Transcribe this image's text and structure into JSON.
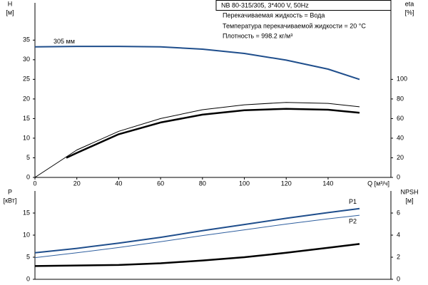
{
  "chart_data": [
    {
      "type": "line",
      "title": "NB 80-315/305, 3*400 V, 50Hz",
      "notes": [
        "Перекачиваемая жидкость = Вода",
        "Температура перекачиваемой жидкости = 20 °C",
        "Плотность = 998.2 кг/м³"
      ],
      "ylabel": "H",
      "yunit": "[м]",
      "y2label": "eta",
      "y2unit": "[%]",
      "xlabel": "Q [м³/ч]",
      "xlim": [
        0,
        170
      ],
      "xticks": [
        0,
        20,
        40,
        60,
        80,
        100,
        120,
        140
      ],
      "ylim": [
        0,
        44.5
      ],
      "yticks": [
        0,
        5,
        10,
        15,
        20,
        25,
        30,
        35
      ],
      "y2lim": [
        0,
        178
      ],
      "y2ticks": [
        0,
        20,
        40,
        60,
        80,
        100
      ],
      "series": [
        {
          "name": "305 мм",
          "color": "#1f4e8c",
          "line_width": 2,
          "x": [
            0,
            20,
            40,
            60,
            80,
            100,
            120,
            140,
            155
          ],
          "values": [
            33.3,
            33.4,
            33.4,
            33.3,
            32.7,
            31.6,
            29.9,
            27.6,
            25.0
          ]
        },
        {
          "color": "#000000",
          "line_width": 1,
          "axis": "y2",
          "x": [
            0,
            20,
            40,
            60,
            80,
            100,
            120,
            140,
            155
          ],
          "values": [
            0,
            28,
            47,
            60,
            69,
            74,
            76.5,
            75.5,
            72
          ]
        },
        {
          "color": "#000000",
          "line_width": 2.5,
          "axis": "y2",
          "x": [
            15,
            20,
            40,
            60,
            80,
            100,
            120,
            140,
            155
          ],
          "values": [
            20,
            25,
            44,
            56,
            64,
            68.5,
            70,
            69,
            66
          ]
        }
      ]
    },
    {
      "type": "line",
      "ylabel": "P",
      "yunit": "[кВт]",
      "y2label": "NPSH",
      "y2unit": "[м]",
      "xlim": [
        0,
        170
      ],
      "ylim": [
        0,
        20
      ],
      "yticks": [
        0,
        5,
        10,
        15
      ],
      "y2lim": [
        0,
        8
      ],
      "y2ticks": [
        0,
        2,
        4,
        6
      ],
      "series": [
        {
          "name": "P1",
          "color": "#1f4e8c",
          "line_width": 2,
          "x": [
            0,
            20,
            40,
            60,
            80,
            100,
            120,
            140,
            155
          ],
          "values": [
            6.0,
            7.0,
            8.2,
            9.5,
            11.0,
            12.4,
            13.8,
            15.1,
            16.0
          ]
        },
        {
          "name": "P2",
          "color": "#2f5f9f",
          "line_width": 1,
          "x": [
            0,
            20,
            40,
            60,
            80,
            100,
            120,
            140,
            155
          ],
          "values": [
            4.9,
            6.0,
            7.2,
            8.5,
            9.9,
            11.2,
            12.5,
            13.7,
            14.5
          ]
        },
        {
          "color": "#000000",
          "line_width": 2.5,
          "axis": "y2",
          "x": [
            0,
            20,
            40,
            60,
            80,
            100,
            120,
            140,
            155
          ],
          "values": [
            1.2,
            1.25,
            1.3,
            1.45,
            1.7,
            2.0,
            2.4,
            2.85,
            3.2
          ]
        }
      ]
    }
  ]
}
